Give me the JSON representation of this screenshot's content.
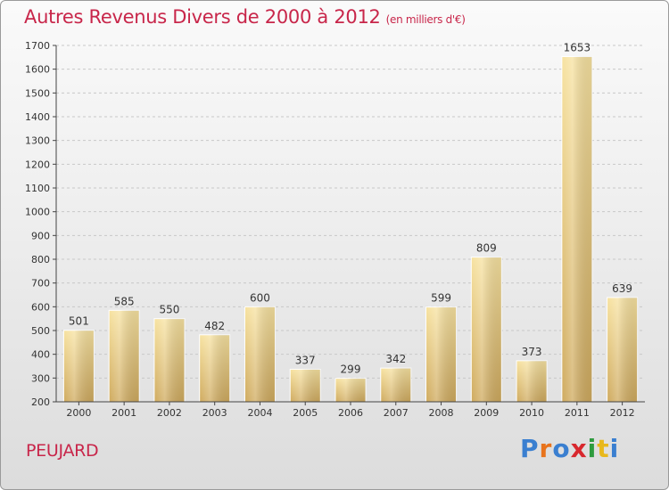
{
  "title": "Autres Revenus Divers de 2000 à 2012",
  "unit": "(en milliers d'€)",
  "commune": "PEUJARD",
  "logo": {
    "text": "Proxiti",
    "letter_colors": [
      "#3a7fd0",
      "#e8731c",
      "#3a7fd0",
      "#d8282e",
      "#2e9b3e",
      "#e8b81c",
      "#3a7fd0"
    ]
  },
  "colors": {
    "title": "#c8264a",
    "bar_light": "#f7e2a0",
    "bar_dark": "#cfaa5e",
    "grid": "#c8c8c8",
    "axis": "#444444"
  },
  "chart_data": {
    "type": "bar",
    "title": "Autres Revenus Divers de 2000 à 2012",
    "categories": [
      "2000",
      "2001",
      "2002",
      "2003",
      "2004",
      "2005",
      "2006",
      "2007",
      "2008",
      "2009",
      "2010",
      "2011",
      "2012"
    ],
    "values": [
      501,
      585,
      550,
      482,
      600,
      337,
      299,
      342,
      599,
      809,
      373,
      1653,
      639
    ],
    "ylim": [
      200,
      1700
    ],
    "yticks": [
      200,
      300,
      400,
      500,
      600,
      700,
      800,
      900,
      1000,
      1100,
      1200,
      1300,
      1400,
      1500,
      1600,
      1700
    ],
    "grid": true,
    "legend": "none"
  }
}
